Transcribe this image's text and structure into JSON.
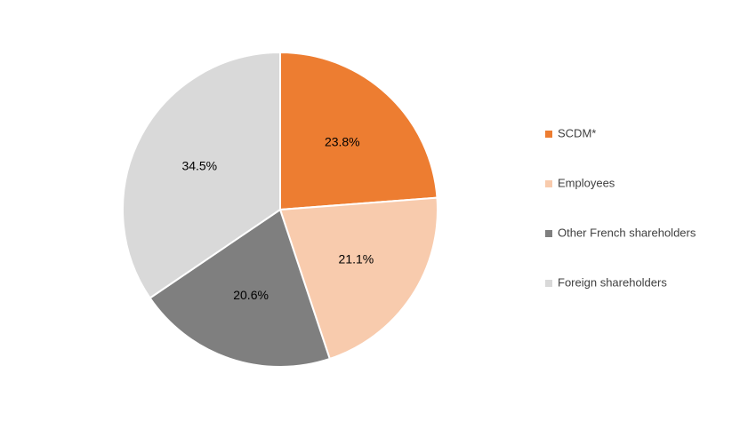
{
  "chart_data": {
    "type": "pie",
    "title": "",
    "categories": [
      "SCDM*",
      "Employees",
      "Other French shareholders",
      "Foreign shareholders"
    ],
    "values": [
      23.8,
      21.1,
      20.6,
      34.5
    ],
    "data_labels": [
      "23.8%",
      "21.1%",
      "20.6%",
      "34.5%"
    ],
    "colors": [
      "#ed7d31",
      "#f8cbad",
      "#7f7f7f",
      "#d9d9d9"
    ],
    "start_angle": "12 o'clock",
    "direction": "clockwise",
    "slice_border_color": "#ffffff",
    "legend": {
      "position": "right",
      "entries": [
        "SCDM*",
        "Employees",
        "Other French shareholders",
        "Foreign shareholders"
      ]
    }
  }
}
